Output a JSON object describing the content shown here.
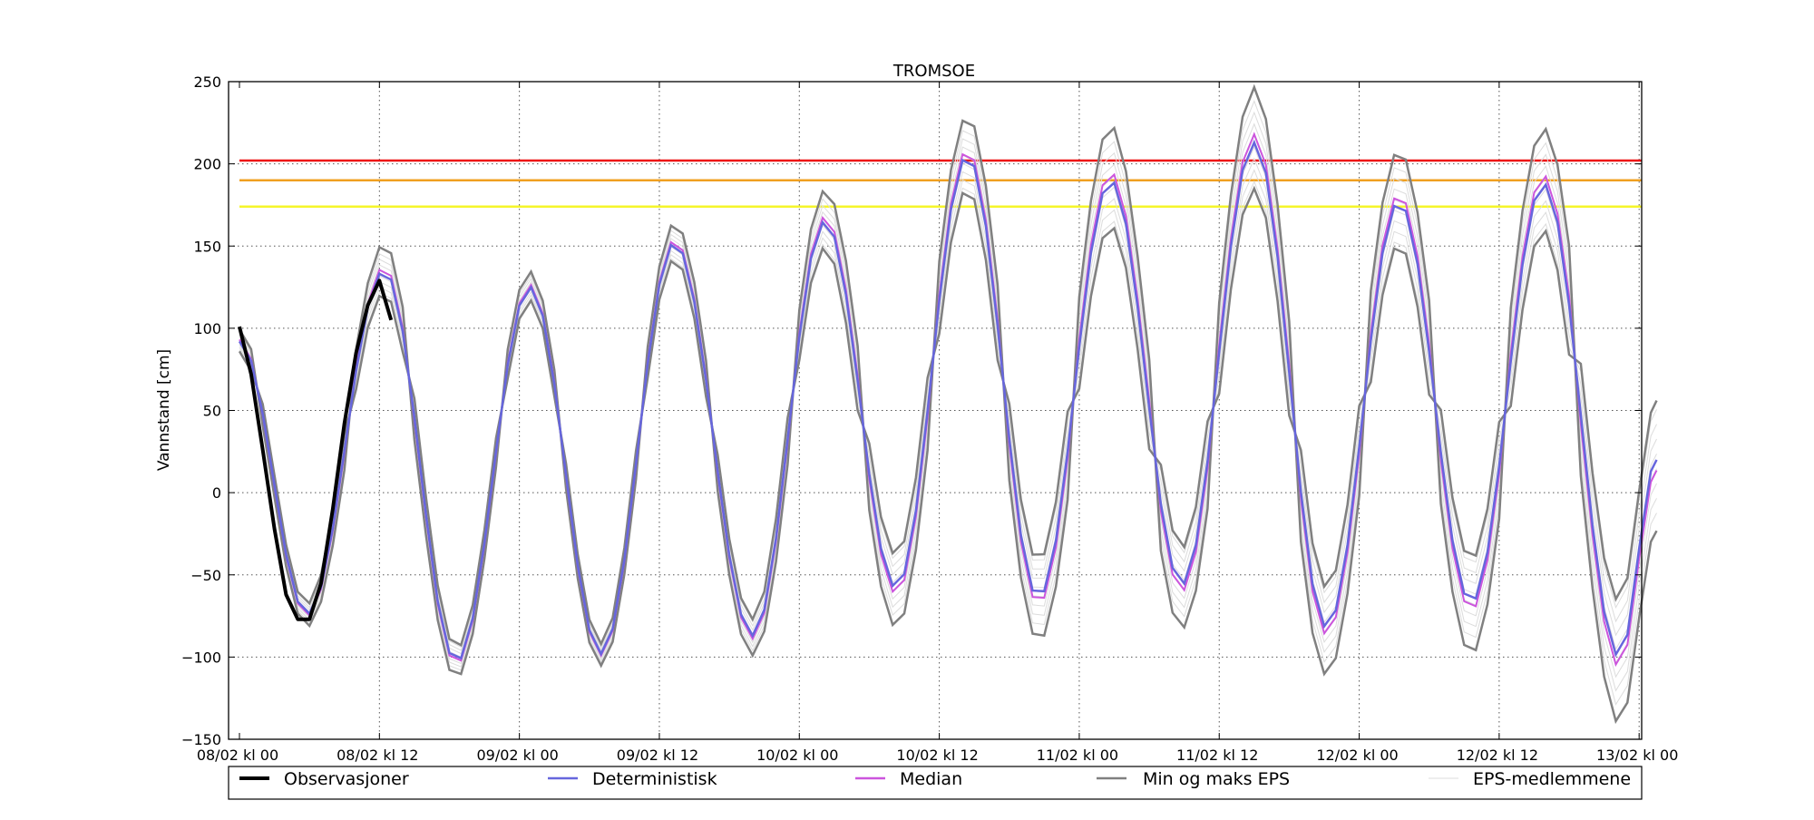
{
  "chart_data": {
    "type": "line",
    "title": "TROMSOE",
    "ylabel": "Vannstand [cm]",
    "xlabel": "",
    "ylim": [
      -150,
      250
    ],
    "xlim": [
      0,
      121.5
    ],
    "x_unit_note": "hours from 08/02 kl 00",
    "yticks": [
      250,
      200,
      150,
      100,
      50,
      0,
      -50,
      -100,
      -150
    ],
    "ytick_labels": [
      "250",
      "200",
      "150",
      "100",
      "50",
      "0",
      "−50",
      "−100",
      "−150"
    ],
    "xticks": [
      0,
      12,
      24,
      36,
      48,
      60,
      72,
      84,
      96,
      108,
      120
    ],
    "xtick_labels": [
      "08/02 kl 00",
      "08/02 kl 12",
      "09/02 kl 00",
      "09/02 kl 12",
      "10/02 kl 00",
      "10/02 kl 12",
      "11/02 kl 00",
      "11/02 kl 12",
      "12/02 kl 00",
      "12/02 kl 12",
      "13/02 kl 00"
    ],
    "grid": true,
    "legend_position": "bottom",
    "thresholds": [
      {
        "value": 202,
        "color": "#ee1111"
      },
      {
        "value": 190,
        "color": "#f0a020"
      },
      {
        "value": 174,
        "color": "#f5f52a"
      }
    ],
    "extrema": [
      [
        0,
        92
      ],
      [
        5.8,
        -74
      ],
      [
        12.4,
        135
      ],
      [
        18.6,
        -103
      ],
      [
        24.9,
        125
      ],
      [
        31.0,
        -98
      ],
      [
        37.3,
        152
      ],
      [
        44.0,
        -87
      ],
      [
        50.2,
        165
      ],
      [
        56.3,
        -58
      ],
      [
        62.4,
        205
      ],
      [
        68.5,
        -64
      ],
      [
        74.7,
        190
      ],
      [
        80.8,
        -56
      ],
      [
        87.0,
        213
      ],
      [
        93.2,
        -82
      ],
      [
        99.4,
        177
      ],
      [
        105.6,
        -67
      ],
      [
        111.8,
        188
      ],
      [
        118.3,
        -100
      ],
      [
        121.5,
        20
      ]
    ],
    "spread": [
      [
        0,
        6
      ],
      [
        5.8,
        6
      ],
      [
        12.4,
        14
      ],
      [
        18.6,
        8
      ],
      [
        24.9,
        8
      ],
      [
        31.0,
        6
      ],
      [
        37.3,
        10
      ],
      [
        44.0,
        10
      ],
      [
        50.2,
        16
      ],
      [
        56.3,
        20
      ],
      [
        62.4,
        20
      ],
      [
        68.5,
        22
      ],
      [
        74.7,
        28
      ],
      [
        80.8,
        22
      ],
      [
        87.0,
        28
      ],
      [
        93.2,
        24
      ],
      [
        99.4,
        26
      ],
      [
        105.6,
        26
      ],
      [
        111.8,
        28
      ],
      [
        118.3,
        34
      ],
      [
        121.5,
        36
      ]
    ],
    "observations": {
      "x": [
        0,
        1,
        2,
        3,
        4,
        5,
        6,
        7,
        8,
        9,
        10,
        11,
        12,
        13
      ],
      "y": [
        101,
        72,
        26,
        -22,
        -62,
        -77,
        -77,
        -55,
        -10,
        42,
        85,
        114,
        129,
        105
      ]
    },
    "series": [
      {
        "name": "Observasjoner",
        "color": "#000000"
      },
      {
        "name": "Deterministisk",
        "color": "#6666dd"
      },
      {
        "name": "Median",
        "color": "#cc55dd"
      },
      {
        "name": "Min og maks EPS",
        "color": "#808080"
      },
      {
        "name": "EPS-medlemmene",
        "color": "#dddddd"
      }
    ]
  }
}
